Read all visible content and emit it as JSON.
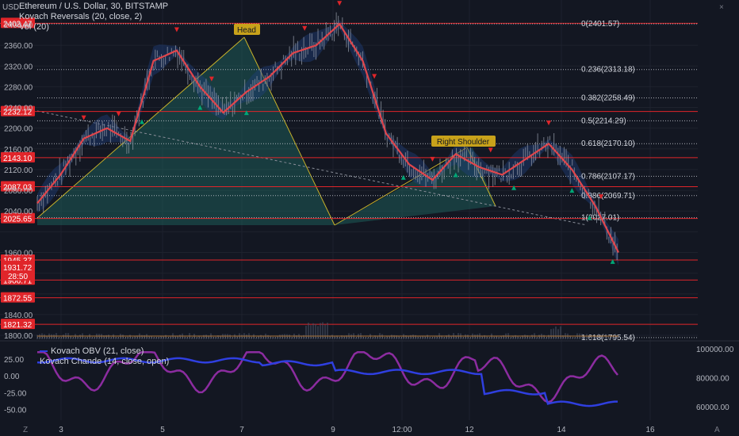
{
  "header": {
    "title": "Ethereum / U.S. Dollar, 30, BITSTAMP",
    "indicator1": "Kovach Reversals (20, close, 2)",
    "indicator2": "Vol (20)"
  },
  "axis_unit": "USD",
  "menu_letter": "Z",
  "auto_letter": "A",
  "close_x": "×",
  "colors": {
    "background": "#131722",
    "price_line": "#e0464c",
    "hline": "#e0252a",
    "fib": "#d1d4dc",
    "obv": "#2f3fe0",
    "chande": "#8c2ca0",
    "label_head": "#c8a21a",
    "trend_up": "#00a676",
    "trend_down": "#e0252a"
  },
  "annotations": {
    "head": "Head",
    "right_shoulder": "Right Shoulder"
  },
  "price_axis": {
    "ticks": [
      "2400.00",
      "2360.00",
      "2320.00",
      "2280.00",
      "2240.00",
      "2200.00",
      "2160.00",
      "2120.00",
      "2080.00",
      "2040.00",
      "1960.00",
      "1840.00",
      "1800.00"
    ],
    "red_labels": [
      "2402.47",
      "2232.12",
      "2143.10",
      "2087.03",
      "2025.65",
      "1945.37",
      "1906.71",
      "1872.55",
      "1821.32"
    ],
    "current_price": "1931.72",
    "countdown": "28:50"
  },
  "fib_levels": [
    {
      "label": "0(2401.57)",
      "value": 2401.57
    },
    {
      "label": "0.236(2313.18)",
      "value": 2313.18
    },
    {
      "label": "0.382(2258.49)",
      "value": 2258.49
    },
    {
      "label": "0.5(2214.29)",
      "value": 2214.29
    },
    {
      "label": "0.618(2170.10)",
      "value": 2170.1
    },
    {
      "label": "0.786(2107.17)",
      "value": 2107.17
    },
    {
      "label": "0.886(2069.71)",
      "value": 2069.71
    },
    {
      "label": "1(2027.01)",
      "value": 2027.01
    },
    {
      "label": "1.618(1795.54)",
      "value": 1795.54
    }
  ],
  "lower_pane": {
    "obv_label": "Kovach OBV (21, close)",
    "chande_label": "Kovach Chande (14, close, open)",
    "left_ticks": [
      "25.00",
      "0.00",
      "-25.00",
      "-50.00"
    ],
    "right_ticks": [
      "100000.00",
      "80000.00",
      "60000.00"
    ]
  },
  "time_axis": [
    "3",
    "5",
    "7",
    "9",
    "12:00",
    "12",
    "14",
    "16"
  ],
  "chart_data": {
    "type": "line",
    "title": "Ethereum / U.S. Dollar, 30, BITSTAMP",
    "ylim": [
      1790,
      2430
    ],
    "series": [
      {
        "name": "",
        "x": [
          0,
          4,
          8,
          12,
          16,
          20,
          24,
          28,
          32,
          36,
          40,
          44,
          48,
          52,
          56,
          60,
          64,
          68,
          72,
          76,
          80,
          84,
          88,
          92,
          96,
          100
        ],
        "values": [
          2055,
          2110,
          2180,
          2200,
          2175,
          2330,
          2350,
          2280,
          2230,
          2270,
          2300,
          2345,
          2360,
          2401,
          2330,
          2190,
          2130,
          2100,
          2150,
          2125,
          2110,
          2140,
          2170,
          2120,
          2050,
          1960
        ]
      }
    ]
  }
}
